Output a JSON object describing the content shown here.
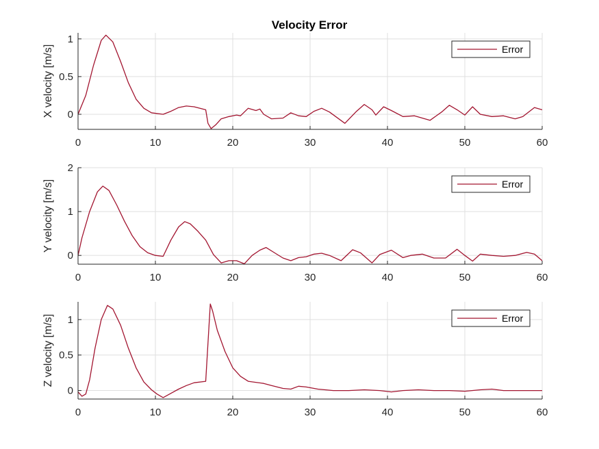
{
  "colors": {
    "series": "#a2142f",
    "grid": "#dfdfdf",
    "axis": "#262626"
  },
  "chart_data": [
    {
      "type": "line",
      "title": "Velocity Error",
      "xlabel": "",
      "ylabel": "X velocity [m/s]",
      "xlim": [
        0,
        60
      ],
      "ylim": [
        -0.2,
        1.08
      ],
      "xticks": [
        0,
        10,
        20,
        30,
        40,
        50,
        60
      ],
      "yticks": [
        0,
        0.5,
        1
      ],
      "xtick_labels": [
        "0",
        "10",
        "20",
        "30",
        "40",
        "50",
        "60"
      ],
      "ytick_labels": [
        "0",
        "0.5",
        "1"
      ],
      "grid": true,
      "legend": {
        "position": "top-right",
        "entries": [
          "Error"
        ]
      },
      "series": [
        {
          "name": "Error",
          "x": [
            0,
            1,
            2,
            3,
            3.6,
            4.5,
            5.5,
            6.5,
            7.5,
            8.5,
            9.5,
            11,
            12,
            13,
            14,
            15,
            16.5,
            16.8,
            17.2,
            17.8,
            18.5,
            19.5,
            20.5,
            21,
            22,
            23,
            23.5,
            24,
            25,
            26.5,
            27.5,
            28.5,
            29.5,
            30.5,
            31.5,
            32.5,
            34.5,
            36,
            37,
            38,
            38.5,
            39.5,
            40.5,
            42,
            43.5,
            45.5,
            47,
            48,
            49,
            50,
            51,
            52,
            53.5,
            55,
            56.5,
            57.5,
            59,
            60
          ],
          "values": [
            0,
            0.25,
            0.65,
            0.98,
            1.05,
            0.96,
            0.7,
            0.42,
            0.2,
            0.08,
            0.02,
            0.0,
            0.04,
            0.09,
            0.11,
            0.1,
            0.06,
            -0.12,
            -0.19,
            -0.14,
            -0.06,
            -0.03,
            -0.01,
            -0.02,
            0.08,
            0.05,
            0.07,
            0.0,
            -0.06,
            -0.05,
            0.02,
            -0.02,
            -0.03,
            0.04,
            0.08,
            0.03,
            -0.12,
            0.04,
            0.13,
            0.06,
            -0.01,
            0.1,
            0.05,
            -0.03,
            -0.02,
            -0.08,
            0.03,
            0.12,
            0.06,
            -0.01,
            0.1,
            0.0,
            -0.03,
            -0.02,
            -0.06,
            -0.03,
            0.09,
            0.06
          ]
        }
      ]
    },
    {
      "type": "line",
      "title": "",
      "xlabel": "",
      "ylabel": "Y velocity [m/s]",
      "xlim": [
        0,
        60
      ],
      "ylim": [
        -0.2,
        2.0
      ],
      "xticks": [
        0,
        10,
        20,
        30,
        40,
        50,
        60
      ],
      "yticks": [
        0,
        1,
        2
      ],
      "xtick_labels": [
        "0",
        "10",
        "20",
        "30",
        "40",
        "50",
        "60"
      ],
      "ytick_labels": [
        "0",
        "1",
        "2"
      ],
      "grid": true,
      "legend": {
        "position": "top-right",
        "entries": [
          "Error"
        ]
      },
      "series": [
        {
          "name": "Error",
          "x": [
            0,
            0.5,
            1.5,
            2.5,
            3.2,
            4,
            5,
            6,
            7,
            8,
            9,
            10,
            11,
            12,
            13,
            13.8,
            14.5,
            15.5,
            16.5,
            17.5,
            18.5,
            19.5,
            20.5,
            21.5,
            22.5,
            23.5,
            24.3,
            25.5,
            26.5,
            27.5,
            28.5,
            29.5,
            30.5,
            31.5,
            32.5,
            34,
            35.5,
            36.5,
            38,
            39,
            40.5,
            42,
            43,
            44.5,
            46,
            47.5,
            49,
            50,
            51,
            52,
            53.5,
            55,
            56.5,
            58,
            59,
            60
          ],
          "values": [
            0,
            0.4,
            1.0,
            1.45,
            1.58,
            1.48,
            1.15,
            0.78,
            0.45,
            0.2,
            0.06,
            0.0,
            -0.02,
            0.35,
            0.65,
            0.77,
            0.72,
            0.55,
            0.35,
            0.02,
            -0.17,
            -0.12,
            -0.12,
            -0.19,
            0.0,
            0.12,
            0.18,
            0.05,
            -0.06,
            -0.12,
            -0.05,
            -0.03,
            0.03,
            0.05,
            0.0,
            -0.12,
            0.13,
            0.06,
            -0.17,
            0.02,
            0.12,
            -0.05,
            0.0,
            0.03,
            -0.06,
            -0.06,
            0.14,
            0.0,
            -0.13,
            0.03,
            0.0,
            -0.02,
            0.0,
            0.07,
            0.03,
            -0.12
          ]
        }
      ]
    },
    {
      "type": "line",
      "title": "",
      "xlabel": "",
      "ylabel": "Z velocity [m/s]",
      "xlim": [
        0,
        60
      ],
      "ylim": [
        -0.12,
        1.25
      ],
      "xticks": [
        0,
        10,
        20,
        30,
        40,
        50,
        60
      ],
      "yticks": [
        0,
        0.5,
        1
      ],
      "xtick_labels": [
        "0",
        "10",
        "20",
        "30",
        "40",
        "50",
        "60"
      ],
      "ytick_labels": [
        "0",
        "0.5",
        "1"
      ],
      "grid": true,
      "legend": {
        "position": "top-right",
        "entries": [
          "Error"
        ]
      },
      "series": [
        {
          "name": "Error",
          "x": [
            0,
            0.5,
            1,
            1.5,
            2.2,
            3,
            3.8,
            4.5,
            5.5,
            6.5,
            7.5,
            8.5,
            9.5,
            10.2,
            11,
            12,
            13,
            14,
            15,
            16.5,
            17.1,
            17.4,
            18,
            19,
            20,
            21,
            22,
            24,
            25,
            26.5,
            27.5,
            28.5,
            29.5,
            31,
            33,
            35,
            37,
            39,
            40.5,
            42,
            44,
            46,
            48,
            50,
            52,
            53.5,
            55,
            57,
            60
          ],
          "values": [
            -0.02,
            -0.08,
            -0.05,
            0.15,
            0.6,
            1.0,
            1.2,
            1.15,
            0.92,
            0.6,
            0.32,
            0.12,
            0.01,
            -0.05,
            -0.1,
            -0.04,
            0.02,
            0.07,
            0.11,
            0.13,
            1.22,
            1.12,
            0.85,
            0.55,
            0.32,
            0.2,
            0.13,
            0.1,
            0.07,
            0.03,
            0.02,
            0.06,
            0.05,
            0.02,
            0.0,
            0.0,
            0.01,
            0.0,
            -0.02,
            0.0,
            0.01,
            0.0,
            0.0,
            -0.01,
            0.01,
            0.02,
            0.0,
            0.0,
            0.0
          ]
        }
      ]
    }
  ]
}
